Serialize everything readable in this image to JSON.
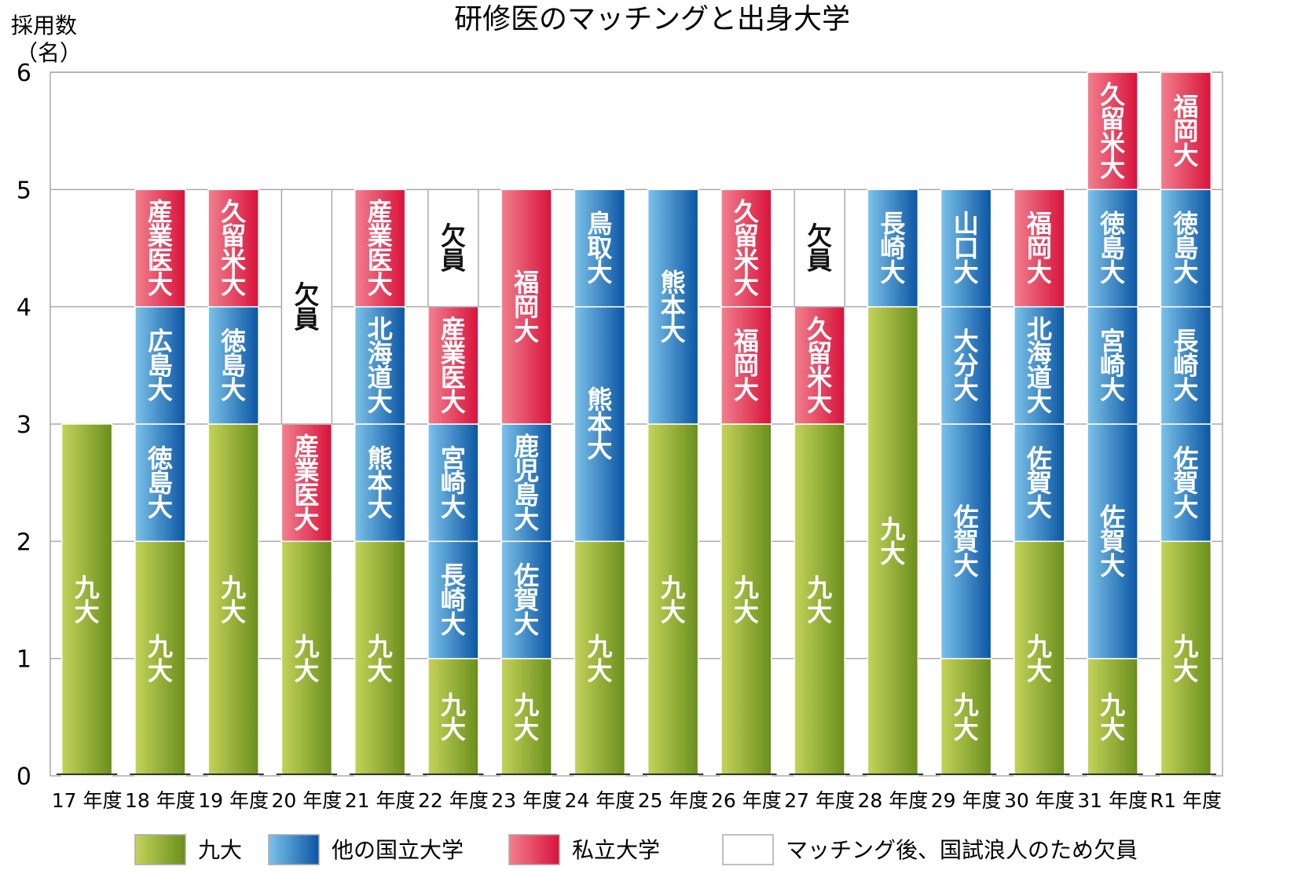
{
  "chart_data": {
    "type": "bar",
    "stacked": true,
    "title": "研修医のマッチングと出身大学",
    "ylabel_line1": "採用数",
    "ylabel_line2": "（名）",
    "xlabel": "",
    "ylim": [
      0,
      6
    ],
    "yticks": [
      "0",
      "1",
      "2",
      "3",
      "4",
      "5",
      "6"
    ],
    "grid": true,
    "legend_position": "bottom",
    "colors": {
      "kyudai": [
        "#c4d35a",
        "#6a8e1c"
      ],
      "national": [
        "#7cc2ea",
        "#0b55a3"
      ],
      "private": [
        "#f2808f",
        "#d8123b"
      ],
      "vacant": [
        "#ffffff",
        "#ffffff"
      ],
      "gridline": "#aaaaaa",
      "baseline": "#333333"
    },
    "legend": [
      {
        "key": "kyudai",
        "label": "九大"
      },
      {
        "key": "national",
        "label": "他の国立大学"
      },
      {
        "key": "private",
        "label": "私立大学"
      },
      {
        "key": "vacant",
        "label": "マッチング後、国試浪人のため欠員"
      }
    ],
    "categories": [
      "17 年度",
      "18 年度",
      "19 年度",
      "20 年度",
      "21 年度",
      "22 年度",
      "23 年度",
      "24 年度",
      "25 年度",
      "26 年度",
      "27 年度",
      "28 年度",
      "29 年度",
      "30 年度",
      "31 年度",
      "R1 年度"
    ],
    "stacks": [
      [
        {
          "type": "kyudai",
          "value": 3,
          "label": "九大"
        }
      ],
      [
        {
          "type": "kyudai",
          "value": 2,
          "label": "九大"
        },
        {
          "type": "national",
          "value": 1,
          "label": "徳島大"
        },
        {
          "type": "national",
          "value": 1,
          "label": "広島大"
        },
        {
          "type": "private",
          "value": 1,
          "label": "産業医大"
        }
      ],
      [
        {
          "type": "kyudai",
          "value": 3,
          "label": "九大"
        },
        {
          "type": "national",
          "value": 1,
          "label": "徳島大"
        },
        {
          "type": "private",
          "value": 1,
          "label": "久留米大"
        }
      ],
      [
        {
          "type": "kyudai",
          "value": 2,
          "label": "九大"
        },
        {
          "type": "private",
          "value": 1,
          "label": "産業医大"
        },
        {
          "type": "vacant",
          "value": 2,
          "label": "欠員"
        }
      ],
      [
        {
          "type": "kyudai",
          "value": 2,
          "label": "九大"
        },
        {
          "type": "national",
          "value": 1,
          "label": "熊本大"
        },
        {
          "type": "national",
          "value": 1,
          "label": "北海道大"
        },
        {
          "type": "private",
          "value": 1,
          "label": "産業医大"
        }
      ],
      [
        {
          "type": "kyudai",
          "value": 1,
          "label": "九大"
        },
        {
          "type": "national",
          "value": 1,
          "label": "長崎大"
        },
        {
          "type": "national",
          "value": 1,
          "label": "宮崎大"
        },
        {
          "type": "private",
          "value": 1,
          "label": "産業医大"
        },
        {
          "type": "vacant",
          "value": 1,
          "label": "欠員"
        }
      ],
      [
        {
          "type": "kyudai",
          "value": 1,
          "label": "九大"
        },
        {
          "type": "national",
          "value": 1,
          "label": "佐賀大"
        },
        {
          "type": "national",
          "value": 1,
          "label": "鹿児島大"
        },
        {
          "type": "private",
          "value": 2,
          "label": "福岡大"
        }
      ],
      [
        {
          "type": "kyudai",
          "value": 2,
          "label": "九大"
        },
        {
          "type": "national",
          "value": 2,
          "label": "熊本大"
        },
        {
          "type": "national",
          "value": 1,
          "label": "鳥取大"
        }
      ],
      [
        {
          "type": "kyudai",
          "value": 3,
          "label": "九大"
        },
        {
          "type": "national",
          "value": 2,
          "label": "熊本大"
        }
      ],
      [
        {
          "type": "kyudai",
          "value": 3,
          "label": "九大"
        },
        {
          "type": "private",
          "value": 1,
          "label": "福岡大"
        },
        {
          "type": "private",
          "value": 1,
          "label": "久留米大"
        }
      ],
      [
        {
          "type": "kyudai",
          "value": 3,
          "label": "九大"
        },
        {
          "type": "private",
          "value": 1,
          "label": "久留米大"
        },
        {
          "type": "vacant",
          "value": 1,
          "label": "欠員"
        }
      ],
      [
        {
          "type": "kyudai",
          "value": 4,
          "label": "九大"
        },
        {
          "type": "national",
          "value": 1,
          "label": "長崎大"
        }
      ],
      [
        {
          "type": "kyudai",
          "value": 1,
          "label": "九大"
        },
        {
          "type": "national",
          "value": 2,
          "label": "佐賀大"
        },
        {
          "type": "national",
          "value": 1,
          "label": "大分大"
        },
        {
          "type": "national",
          "value": 1,
          "label": "山口大"
        }
      ],
      [
        {
          "type": "kyudai",
          "value": 2,
          "label": "九大"
        },
        {
          "type": "national",
          "value": 1,
          "label": "佐賀大"
        },
        {
          "type": "national",
          "value": 1,
          "label": "北海道大"
        },
        {
          "type": "private",
          "value": 1,
          "label": "福岡大"
        }
      ],
      [
        {
          "type": "kyudai",
          "value": 1,
          "label": "九大"
        },
        {
          "type": "national",
          "value": 2,
          "label": "佐賀大"
        },
        {
          "type": "national",
          "value": 1,
          "label": "宮崎大"
        },
        {
          "type": "national",
          "value": 1,
          "label": "徳島大"
        },
        {
          "type": "private",
          "value": 1,
          "label": "久留米大"
        }
      ],
      [
        {
          "type": "kyudai",
          "value": 2,
          "label": "九大"
        },
        {
          "type": "national",
          "value": 1,
          "label": "佐賀大"
        },
        {
          "type": "national",
          "value": 1,
          "label": "長崎大"
        },
        {
          "type": "national",
          "value": 1,
          "label": "徳島大"
        },
        {
          "type": "private",
          "value": 1,
          "label": "福岡大"
        }
      ]
    ]
  }
}
